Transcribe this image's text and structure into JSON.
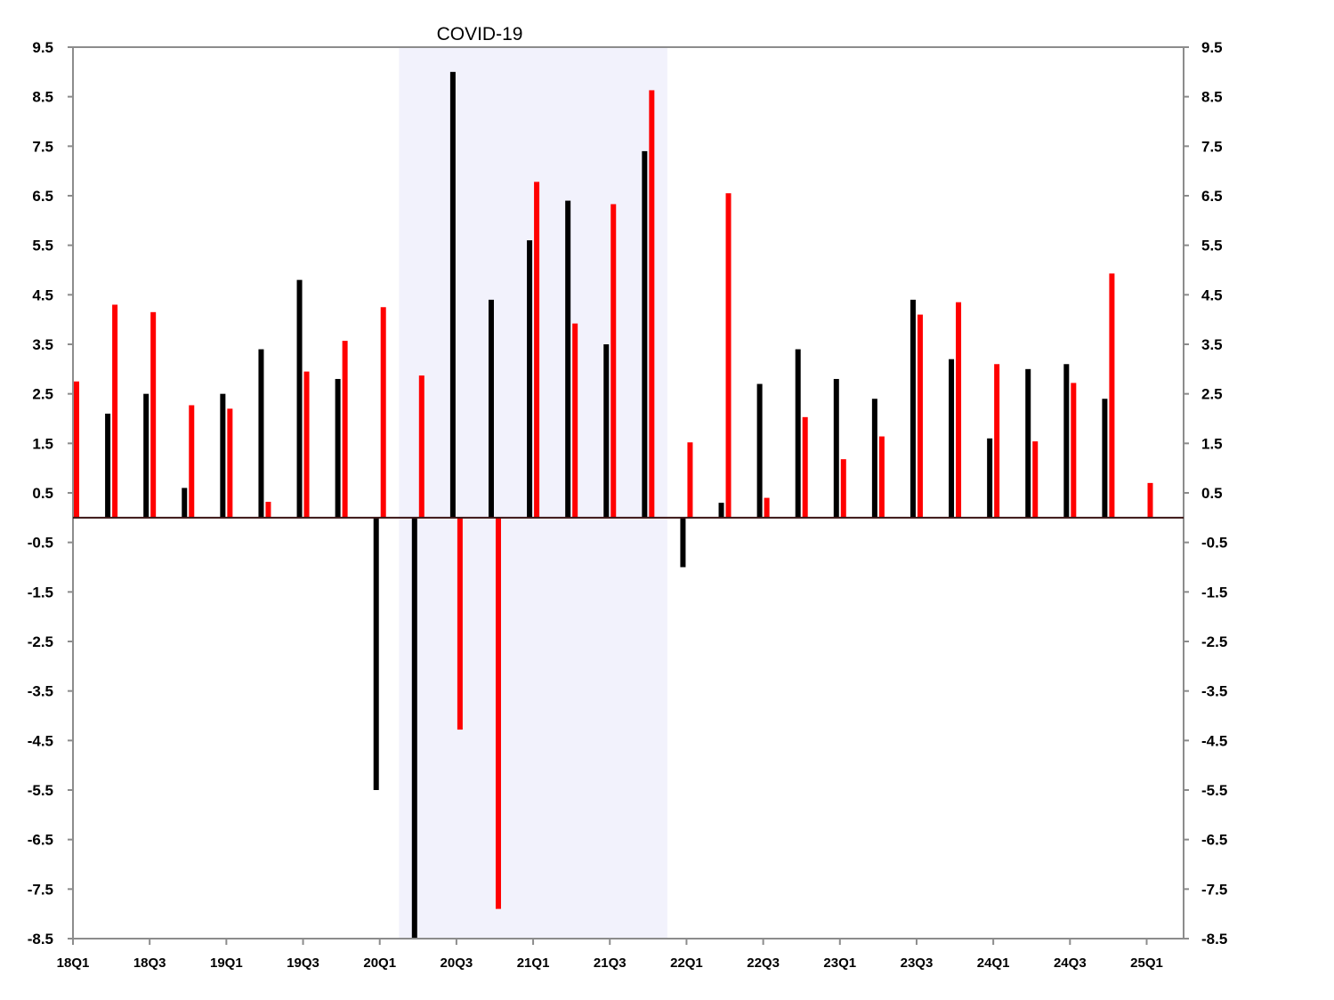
{
  "chart_data": {
    "type": "bar",
    "annotation": "COVID-19",
    "shaded_region": {
      "from": "20Q2",
      "to": "21Q4",
      "color": "#f2f2fc"
    },
    "ylim": [
      -8.5,
      9.5
    ],
    "yticks": [
      "9.5",
      "8.5",
      "7.5",
      "6.5",
      "5.5",
      "4.5",
      "3.5",
      "2.5",
      "1.5",
      "0.5",
      "-0.5",
      "-1.5",
      "-2.5",
      "-3.5",
      "-4.5",
      "-5.5",
      "-6.5",
      "-7.5",
      "-8.5"
    ],
    "ytick_values": [
      9.5,
      8.5,
      7.5,
      6.5,
      5.5,
      4.5,
      3.5,
      2.5,
      1.5,
      0.5,
      -0.5,
      -1.5,
      -2.5,
      -3.5,
      -4.5,
      -5.5,
      -6.5,
      -7.5,
      -8.5
    ],
    "categories": [
      "18Q1",
      "18Q2",
      "18Q3",
      "18Q4",
      "19Q1",
      "19Q2",
      "19Q3",
      "19Q4",
      "20Q1",
      "20Q2",
      "20Q3",
      "20Q4",
      "21Q1",
      "21Q2",
      "21Q3",
      "21Q4",
      "22Q1",
      "22Q2",
      "22Q3",
      "22Q4",
      "23Q1",
      "23Q2",
      "23Q3",
      "23Q4",
      "24Q1",
      "24Q2",
      "24Q3",
      "24Q4",
      "25Q1"
    ],
    "xtick_labels": [
      "18Q1",
      "18Q3",
      "19Q1",
      "19Q3",
      "20Q1",
      "20Q3",
      "21Q1",
      "21Q3",
      "22Q1",
      "22Q3",
      "23Q1",
      "23Q3",
      "24Q1",
      "24Q3",
      "25Q1"
    ],
    "xtick_indices": [
      0,
      2,
      4,
      6,
      8,
      10,
      12,
      14,
      16,
      18,
      20,
      22,
      24,
      26,
      28
    ],
    "series": [
      {
        "color": "#000000",
        "values": [
          null,
          2.1,
          2.5,
          0.6,
          2.5,
          3.4,
          4.8,
          2.8,
          -5.5,
          -8.5,
          9.0,
          4.4,
          5.6,
          6.4,
          3.5,
          7.4,
          -1.0,
          0.3,
          2.7,
          3.4,
          2.8,
          2.4,
          4.4,
          3.2,
          1.6,
          3.0,
          3.1,
          2.4,
          null
        ]
      },
      {
        "color": "#ff0000",
        "values": [
          2.75,
          4.3,
          4.15,
          2.27,
          2.2,
          0.32,
          2.95,
          3.57,
          4.25,
          2.87,
          -4.28,
          -7.9,
          6.78,
          3.92,
          6.33,
          8.63,
          1.52,
          6.55,
          0.4,
          2.03,
          1.18,
          1.64,
          4.1,
          4.35,
          3.1,
          1.54,
          2.72,
          4.93,
          0.7
        ]
      }
    ],
    "grid": false
  }
}
